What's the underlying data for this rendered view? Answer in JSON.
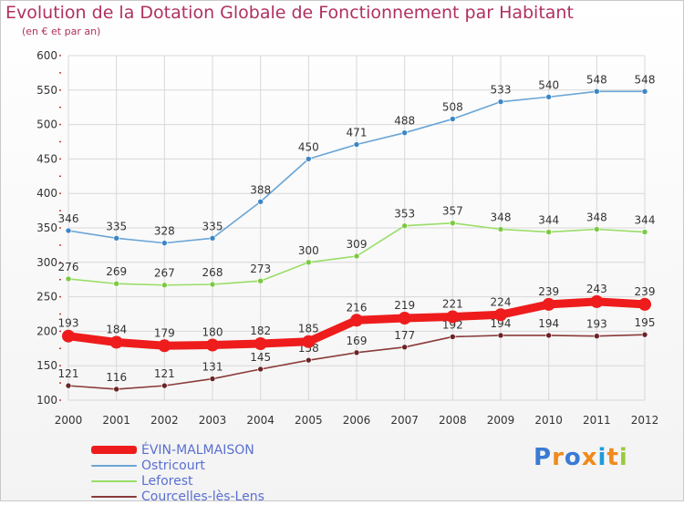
{
  "header": {
    "title": "Evolution de la Dotation Globale de Fonctionnement par Habitant",
    "subtitle": "(en € et par an)"
  },
  "logo": {
    "text": "Proxiti"
  },
  "colors": {
    "title": "#b0305f",
    "legend_text": "#5a6fd0",
    "axis_text": "#333333",
    "grid": "#d8d8d8",
    "tick_marks": "#c43b3b"
  },
  "chart_data": {
    "type": "line",
    "title": "Evolution de la Dotation Globale de Fonctionnement par Habitant",
    "subtitle": "(en € et par an)",
    "xlabel": "",
    "ylabel": "",
    "ylim": [
      100,
      600
    ],
    "yticks": [
      100,
      150,
      200,
      250,
      300,
      350,
      400,
      450,
      500,
      550,
      600
    ],
    "x": [
      "2000",
      "2001",
      "2002",
      "2003",
      "2004",
      "2005",
      "2006",
      "2007",
      "2008",
      "2009",
      "2010",
      "2011",
      "2012"
    ],
    "grid": true,
    "legend_position": "bottom-left",
    "series": [
      {
        "name": "ÉVIN-MALMAISON",
        "color": "#ee1c1c",
        "marker_color": "#ee1c1c",
        "emphasis": true,
        "values": [
          193,
          184,
          179,
          180,
          182,
          185,
          216,
          219,
          221,
          224,
          239,
          243,
          239
        ]
      },
      {
        "name": "Ostricourt",
        "color": "#6aa5d6",
        "marker_color": "#3a86c8",
        "emphasis": false,
        "values": [
          346,
          335,
          328,
          335,
          388,
          450,
          471,
          488,
          508,
          533,
          540,
          548,
          548
        ]
      },
      {
        "name": "Leforest",
        "color": "#99dd66",
        "marker_color": "#7cc940",
        "emphasis": false,
        "values": [
          276,
          269,
          267,
          268,
          273,
          300,
          309,
          353,
          357,
          348,
          344,
          348,
          344
        ]
      },
      {
        "name": "Courcelles-lès-Lens",
        "color": "#8a3a3a",
        "marker_color": "#6b2323",
        "emphasis": false,
        "values": [
          121,
          116,
          121,
          131,
          145,
          158,
          169,
          177,
          192,
          194,
          194,
          193,
          195
        ]
      }
    ]
  }
}
